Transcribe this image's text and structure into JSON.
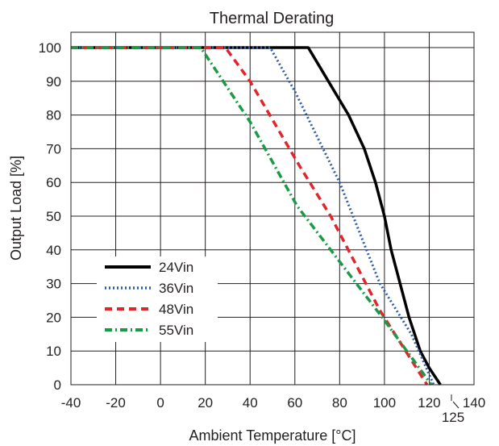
{
  "chart_data": {
    "type": "line",
    "title": "Thermal Derating",
    "xlabel": "Ambient Temperature [°C]",
    "ylabel": "Output Load [%]",
    "xlim": [
      -40,
      140
    ],
    "ylim": [
      0,
      105
    ],
    "x_ticks": [
      "-40",
      "-20",
      "0",
      "20",
      "40",
      "60",
      "80",
      "100",
      "120",
      "140"
    ],
    "y_ticks": [
      "0",
      "10",
      "20",
      "30",
      "40",
      "50",
      "60",
      "70",
      "80",
      "90",
      "100"
    ],
    "x_callout": {
      "x": 125,
      "label": "125"
    },
    "grid": true,
    "legend_position": "bottom-left",
    "series": [
      {
        "name": "24Vin",
        "color": "#000000",
        "dash": "solid",
        "points": [
          [
            -40,
            100
          ],
          [
            66,
            100
          ],
          [
            75,
            90
          ],
          [
            84,
            80
          ],
          [
            91,
            70
          ],
          [
            96,
            60
          ],
          [
            100,
            50
          ],
          [
            103,
            40
          ],
          [
            107,
            30
          ],
          [
            111,
            20
          ],
          [
            116,
            10
          ],
          [
            120,
            5
          ],
          [
            125,
            0
          ]
        ]
      },
      {
        "name": "36Vin",
        "color": "#2e5aa8",
        "dash": "dot",
        "points": [
          [
            -40,
            100
          ],
          [
            49,
            100
          ],
          [
            60,
            87
          ],
          [
            80,
            60
          ],
          [
            98,
            30
          ],
          [
            112,
            15
          ],
          [
            122,
            0
          ]
        ]
      },
      {
        "name": "48Vin",
        "color": "#e0262b",
        "dash": "dash",
        "points": [
          [
            -40,
            100
          ],
          [
            29,
            100
          ],
          [
            40,
            90
          ],
          [
            62,
            65
          ],
          [
            76,
            50
          ],
          [
            98,
            22
          ],
          [
            119,
            0
          ]
        ]
      },
      {
        "name": "55Vin",
        "color": "#1a9a48",
        "dash": "dashdot",
        "points": [
          [
            -40,
            100
          ],
          [
            18,
            100
          ],
          [
            40,
            78
          ],
          [
            61,
            53
          ],
          [
            99,
            20
          ],
          [
            121,
            0
          ]
        ]
      }
    ]
  }
}
